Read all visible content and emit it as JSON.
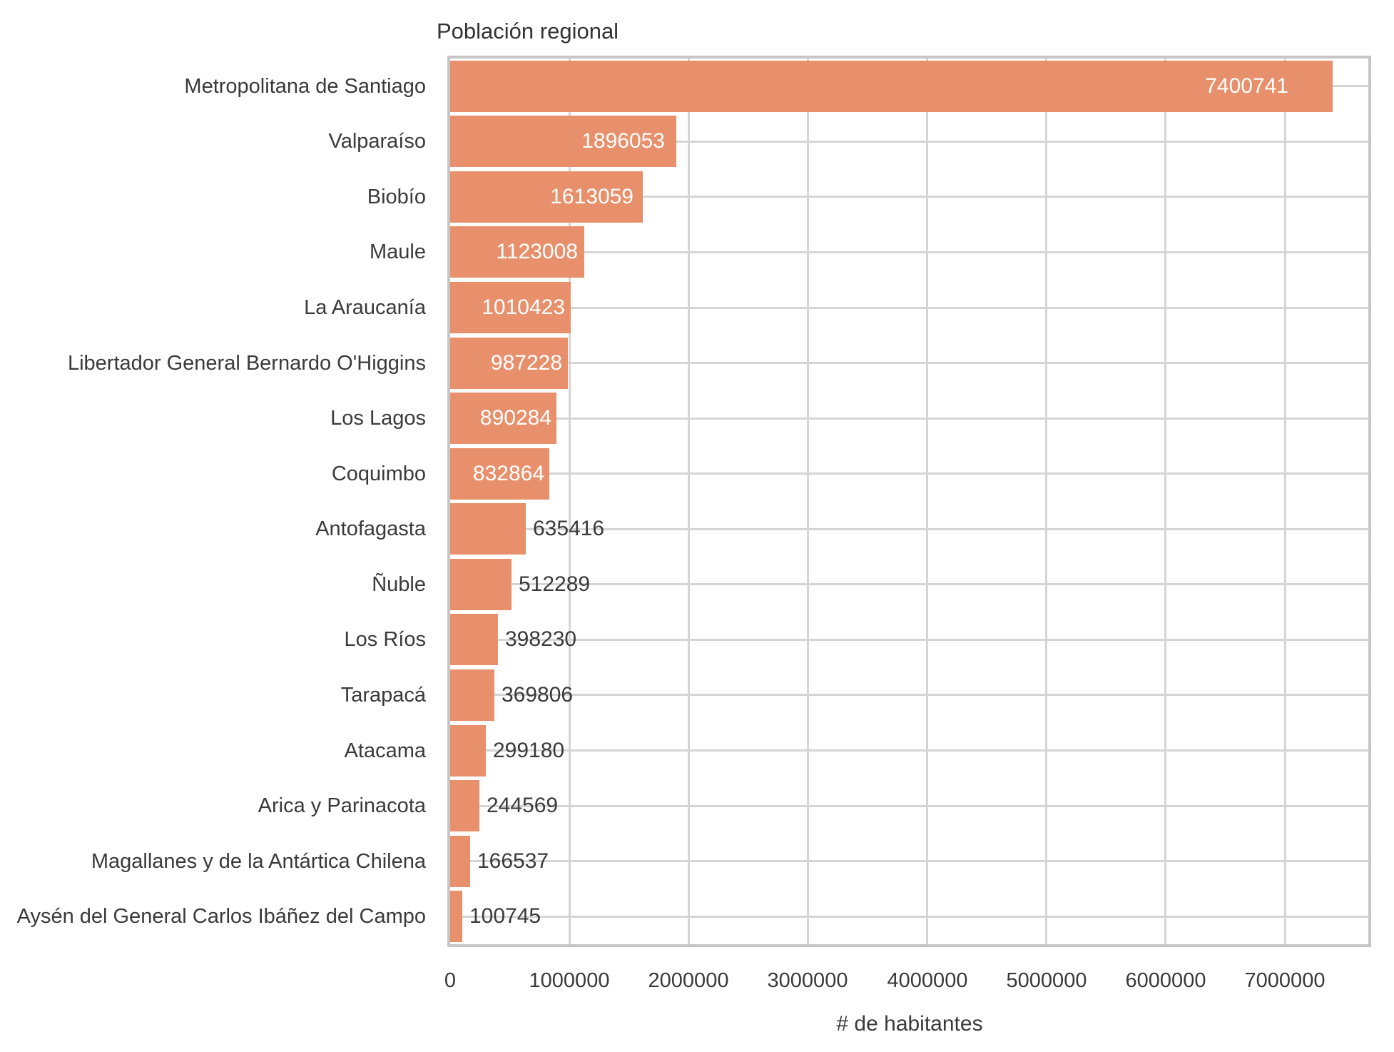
{
  "title": "Población regional",
  "x_axis": {
    "label": "# de habitantes",
    "ticks": [
      0,
      1000000,
      2000000,
      3000000,
      4000000,
      5000000,
      6000000,
      7000000
    ]
  },
  "colors": {
    "bar": "#e8906b",
    "grid": "#d5d5d5",
    "panel_border": "#c6c6c6",
    "text": "#3a3a3a",
    "value_inside": "#ffffff",
    "value_outside": "#3a3a3a"
  },
  "chart_data": {
    "type": "bar",
    "orientation": "horizontal",
    "title": "Población regional",
    "xlabel": "# de habitantes",
    "ylabel": "",
    "categories": [
      "Metropolitana de Santiago",
      "Valparaíso",
      "Biobío",
      "Maule",
      "La Araucanía",
      "Libertador General Bernardo O'Higgins",
      "Los Lagos",
      "Coquimbo",
      "Antofagasta",
      "Ñuble",
      "Los Ríos",
      "Tarapacá",
      "Atacama",
      "Arica y Parinacota",
      "Magallanes y de la Antártica Chilena",
      "Aysén del General Carlos Ibáñez del Campo"
    ],
    "values": [
      7400741,
      1896053,
      1613059,
      1123008,
      1010423,
      987228,
      890284,
      832864,
      635416,
      512289,
      398230,
      369806,
      299180,
      244569,
      166537,
      100745
    ],
    "xlim": [
      0,
      7700000
    ],
    "xticks": [
      0,
      1000000,
      2000000,
      3000000,
      4000000,
      5000000,
      6000000,
      7000000
    ],
    "grid": true,
    "legend": false,
    "value_labels": true,
    "inside_label_min_value": 700000
  }
}
